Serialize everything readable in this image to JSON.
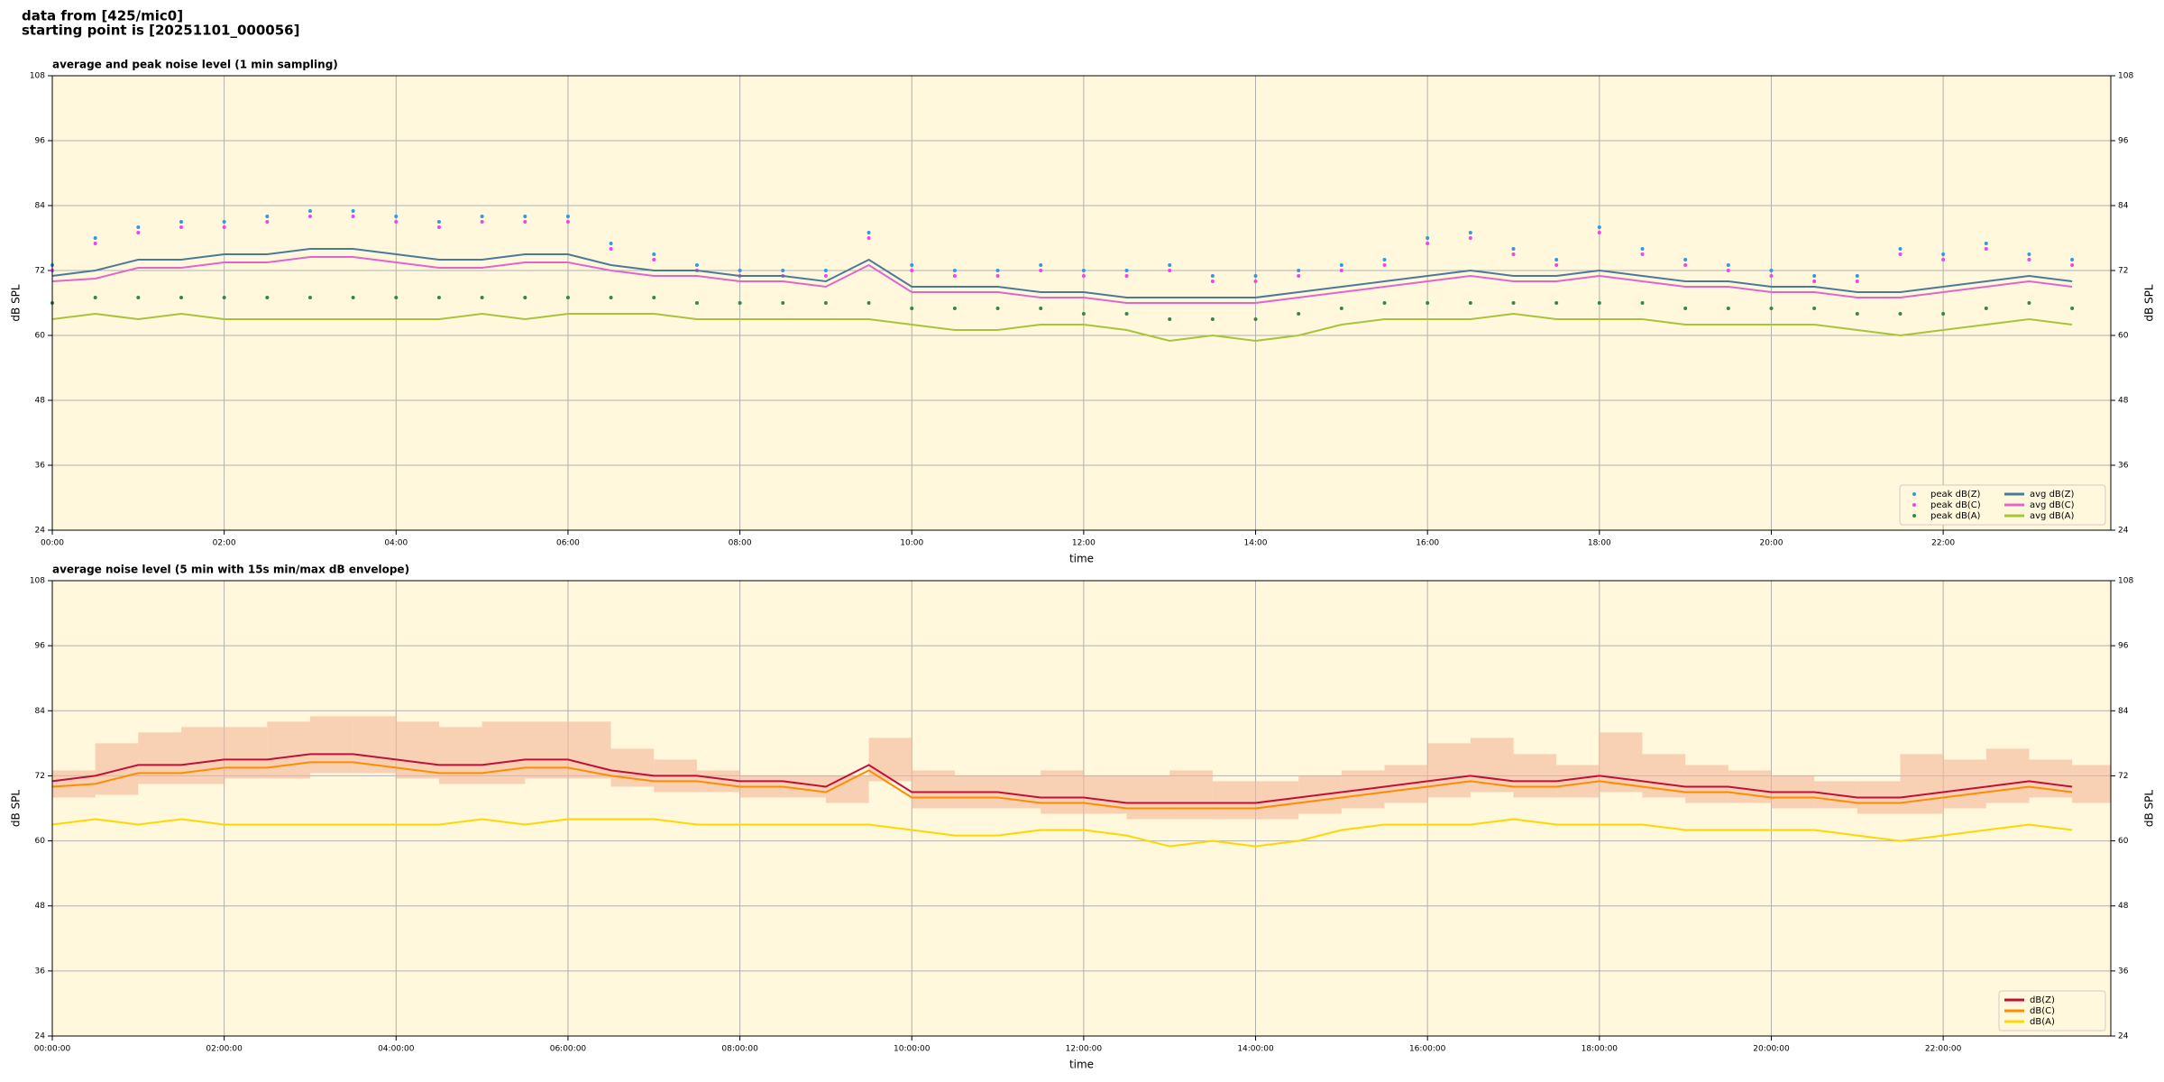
{
  "header": {
    "title": "data from [425/mic0]",
    "subtitle": "starting point is [20251101_000056]"
  },
  "chart_data": [
    {
      "type": "line",
      "title": "average and peak noise level (1 min sampling)",
      "xlabel": "time",
      "ylabel": "dB SPL",
      "background": "#fff8dc",
      "grid": true,
      "legend": "lower right",
      "legend_columns": 2,
      "xlim": [
        0,
        23.95
      ],
      "ylim": [
        24,
        108
      ],
      "yticks": [
        24,
        36,
        48,
        60,
        72,
        84,
        96,
        108
      ],
      "xticks": [
        {
          "value": 0,
          "label": "00:00"
        },
        {
          "value": 2,
          "label": "02:00"
        },
        {
          "value": 4,
          "label": "04:00"
        },
        {
          "value": 6,
          "label": "06:00"
        },
        {
          "value": 8,
          "label": "08:00"
        },
        {
          "value": 10,
          "label": "10:00"
        },
        {
          "value": 12,
          "label": "12:00"
        },
        {
          "value": 14,
          "label": "14:00"
        },
        {
          "value": 16,
          "label": "16:00"
        },
        {
          "value": 18,
          "label": "18:00"
        },
        {
          "value": 20,
          "label": "20:00"
        },
        {
          "value": 22,
          "label": "22:00"
        }
      ],
      "x": [
        0,
        0.5,
        1,
        1.5,
        2,
        2.5,
        3,
        3.5,
        4,
        4.5,
        5,
        5.5,
        6,
        6.5,
        7,
        7.5,
        8,
        8.5,
        9,
        9.5,
        10,
        10.5,
        11,
        11.5,
        12,
        12.5,
        13,
        13.5,
        14,
        14.5,
        15,
        15.5,
        16,
        16.5,
        17,
        17.5,
        18,
        18.5,
        19,
        19.5,
        20,
        20.5,
        21,
        21.5,
        22,
        22.5,
        23,
        23.5
      ],
      "series": [
        {
          "name": "peak dB(Z)",
          "kind": "scatter",
          "color": "#3399dd",
          "values": [
            73,
            78,
            80,
            81,
            81,
            82,
            83,
            83,
            82,
            81,
            82,
            82,
            82,
            77,
            75,
            73,
            72,
            72,
            72,
            79,
            73,
            72,
            72,
            73,
            72,
            72,
            73,
            71,
            71,
            72,
            73,
            74,
            78,
            79,
            76,
            74,
            80,
            76,
            74,
            73,
            72,
            71,
            71,
            76,
            75,
            77,
            75,
            74
          ]
        },
        {
          "name": "peak dB(C)",
          "kind": "scatter",
          "color": "#ee44ee",
          "values": [
            72,
            77,
            79,
            80,
            80,
            81,
            82,
            82,
            81,
            80,
            81,
            81,
            81,
            76,
            74,
            72,
            71,
            71,
            71,
            78,
            72,
            71,
            71,
            72,
            71,
            71,
            72,
            70,
            70,
            71,
            72,
            73,
            77,
            78,
            75,
            73,
            79,
            75,
            73,
            72,
            71,
            70,
            70,
            75,
            74,
            76,
            74,
            73
          ]
        },
        {
          "name": "peak dB(A)",
          "kind": "scatter",
          "color": "#338844",
          "values": [
            66,
            67,
            67,
            67,
            67,
            67,
            67,
            67,
            67,
            67,
            67,
            67,
            67,
            67,
            67,
            66,
            66,
            66,
            66,
            66,
            65,
            65,
            65,
            65,
            64,
            64,
            63,
            63,
            63,
            64,
            65,
            66,
            66,
            66,
            66,
            66,
            66,
            66,
            65,
            65,
            65,
            65,
            64,
            64,
            64,
            65,
            66,
            65
          ]
        },
        {
          "name": "avg dB(Z)",
          "kind": "line",
          "color": "#4a7a9a",
          "values": [
            71,
            72,
            74,
            74,
            75,
            75,
            76,
            76,
            75,
            74,
            74,
            75,
            75,
            73,
            72,
            72,
            71,
            71,
            70,
            74,
            69,
            69,
            69,
            68,
            68,
            67,
            67,
            67,
            67,
            68,
            69,
            70,
            71,
            72,
            71,
            71,
            72,
            71,
            70,
            70,
            69,
            69,
            68,
            68,
            69,
            70,
            71,
            70
          ]
        },
        {
          "name": "avg dB(C)",
          "kind": "line",
          "color": "#e066cc",
          "values": [
            70,
            70.5,
            72.5,
            72.5,
            73.5,
            73.5,
            74.5,
            74.5,
            73.5,
            72.5,
            72.5,
            73.5,
            73.5,
            72,
            71,
            71,
            70,
            70,
            69,
            73,
            68,
            68,
            68,
            67,
            67,
            66,
            66,
            66,
            66,
            67,
            68,
            69,
            70,
            71,
            70,
            70,
            71,
            70,
            69,
            69,
            68,
            68,
            67,
            67,
            68,
            69,
            70,
            69
          ]
        },
        {
          "name": "avg dB(A)",
          "kind": "line",
          "color": "#a8c43a",
          "values": [
            63,
            64,
            63,
            64,
            63,
            63,
            63,
            63,
            63,
            63,
            64,
            63,
            64,
            64,
            64,
            63,
            63,
            63,
            63,
            63,
            62,
            61,
            61,
            62,
            62,
            61,
            59,
            60,
            59,
            60,
            62,
            63,
            63,
            63,
            64,
            63,
            63,
            63,
            62,
            62,
            62,
            62,
            61,
            60,
            61,
            62,
            63,
            62
          ]
        }
      ]
    },
    {
      "type": "line",
      "title": "average noise level (5 min with 15s min/max dB envelope)",
      "xlabel": "time",
      "ylabel": "dB SPL",
      "background": "#fff8dc",
      "grid": true,
      "legend": "lower right",
      "legend_columns": 1,
      "xlim": [
        0,
        23.95
      ],
      "ylim": [
        24,
        108
      ],
      "yticks": [
        24,
        36,
        48,
        60,
        72,
        84,
        96,
        108
      ],
      "xticks": [
        {
          "value": 0,
          "label": "00:00:00"
        },
        {
          "value": 2,
          "label": "02:00:00"
        },
        {
          "value": 4,
          "label": "04:00:00"
        },
        {
          "value": 6,
          "label": "06:00:00"
        },
        {
          "value": 8,
          "label": "08:00:00"
        },
        {
          "value": 10,
          "label": "10:00:00"
        },
        {
          "value": 12,
          "label": "12:00:00"
        },
        {
          "value": 14,
          "label": "14:00:00"
        },
        {
          "value": 16,
          "label": "16:00:00"
        },
        {
          "value": 18,
          "label": "18:00:00"
        },
        {
          "value": 20,
          "label": "20:00:00"
        },
        {
          "value": 22,
          "label": "22:00:00"
        }
      ],
      "x": [
        0,
        0.5,
        1,
        1.5,
        2,
        2.5,
        3,
        3.5,
        4,
        4.5,
        5,
        5.5,
        6,
        6.5,
        7,
        7.5,
        8,
        8.5,
        9,
        9.5,
        10,
        10.5,
        11,
        11.5,
        12,
        12.5,
        13,
        13.5,
        14,
        14.5,
        15,
        15.5,
        16,
        16.5,
        17,
        17.5,
        18,
        18.5,
        19,
        19.5,
        20,
        20.5,
        21,
        21.5,
        22,
        22.5,
        23,
        23.5
      ],
      "envelope": {
        "color": "#f4b89a",
        "high": [
          73,
          78,
          80,
          81,
          81,
          82,
          83,
          83,
          82,
          81,
          82,
          82,
          82,
          77,
          75,
          73,
          72,
          72,
          72,
          79,
          73,
          72,
          72,
          73,
          72,
          72,
          73,
          71,
          71,
          72,
          73,
          74,
          78,
          79,
          76,
          74,
          80,
          76,
          74,
          73,
          72,
          71,
          71,
          76,
          75,
          77,
          75,
          74
        ],
        "low": [
          68,
          68.5,
          70.5,
          70.5,
          71.5,
          71.5,
          72.5,
          72.5,
          71.5,
          70.5,
          70.5,
          71.5,
          71.5,
          70,
          69,
          69,
          68,
          68,
          67,
          71,
          66,
          66,
          66,
          65,
          65,
          64,
          64,
          64,
          64,
          65,
          66,
          67,
          68,
          69,
          68,
          68,
          69,
          68,
          67,
          67,
          66,
          66,
          65,
          65,
          66,
          67,
          68,
          67
        ]
      },
      "series": [
        {
          "name": "dB(Z)",
          "kind": "line",
          "color": "#c0103a",
          "values": [
            71,
            72,
            74,
            74,
            75,
            75,
            76,
            76,
            75,
            74,
            74,
            75,
            75,
            73,
            72,
            72,
            71,
            71,
            70,
            74,
            69,
            69,
            69,
            68,
            68,
            67,
            67,
            67,
            67,
            68,
            69,
            70,
            71,
            72,
            71,
            71,
            72,
            71,
            70,
            70,
            69,
            69,
            68,
            68,
            69,
            70,
            71,
            70
          ]
        },
        {
          "name": "dB(C)",
          "kind": "line",
          "color": "#ff8c00",
          "values": [
            70,
            70.5,
            72.5,
            72.5,
            73.5,
            73.5,
            74.5,
            74.5,
            73.5,
            72.5,
            72.5,
            73.5,
            73.5,
            72,
            71,
            71,
            70,
            70,
            69,
            73,
            68,
            68,
            68,
            67,
            67,
            66,
            66,
            66,
            66,
            67,
            68,
            69,
            70,
            71,
            70,
            70,
            71,
            70,
            69,
            69,
            68,
            68,
            67,
            67,
            68,
            69,
            70,
            69
          ]
        },
        {
          "name": "dB(A)",
          "kind": "line",
          "color": "#ffd700",
          "values": [
            63,
            64,
            63,
            64,
            63,
            63,
            63,
            63,
            63,
            63,
            64,
            63,
            64,
            64,
            64,
            63,
            63,
            63,
            63,
            63,
            62,
            61,
            61,
            62,
            62,
            61,
            59,
            60,
            59,
            60,
            62,
            63,
            63,
            63,
            64,
            63,
            63,
            63,
            62,
            62,
            62,
            62,
            61,
            60,
            61,
            62,
            63,
            62
          ]
        }
      ]
    }
  ]
}
